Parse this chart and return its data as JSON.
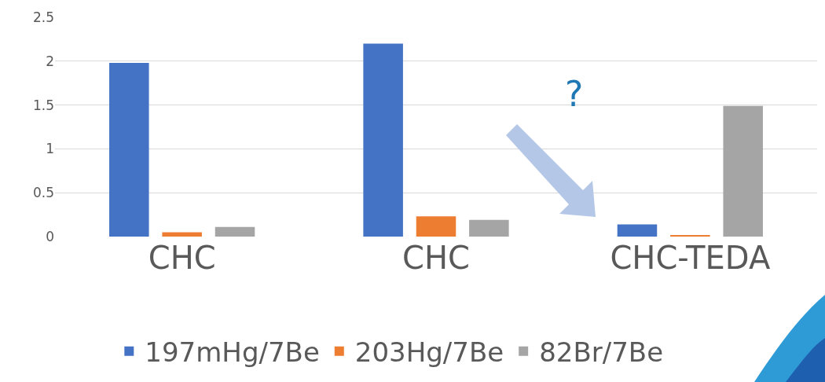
{
  "chart_data": {
    "type": "bar",
    "categories": [
      "CHC",
      "CHC",
      "CHC-TEDA"
    ],
    "series": [
      {
        "name": "197mHg/7Be",
        "color": "#4472c4",
        "values": [
          1.98,
          2.2,
          0.14
        ]
      },
      {
        "name": "203Hg/7Be",
        "color": "#ed7d31",
        "values": [
          0.05,
          0.23,
          0.01
        ]
      },
      {
        "name": "82Br/7Be",
        "color": "#a5a5a5",
        "values": [
          0.11,
          0.19,
          1.49
        ]
      }
    ],
    "ylim": [
      0,
      2.5
    ],
    "yticks": [
      0,
      0.5,
      1,
      1.5,
      2,
      2.5
    ],
    "grid": "y",
    "legend": "bottom",
    "annotations": [
      "?"
    ]
  }
}
